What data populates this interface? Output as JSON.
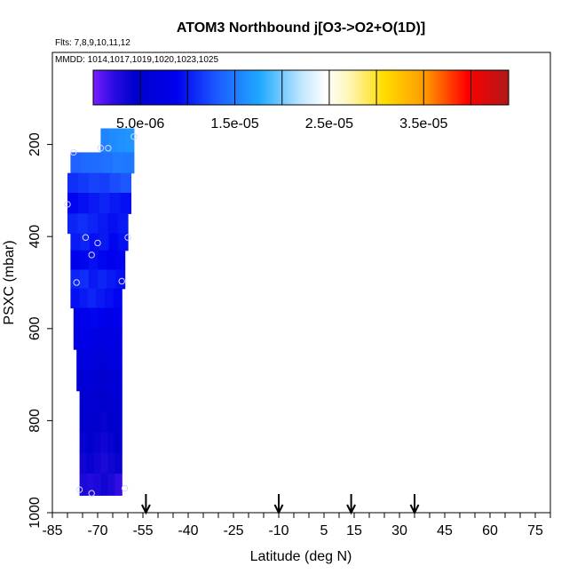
{
  "chart_data": {
    "type": "heatmap",
    "title": "ATOM3 Northbound j[O3->O2+O(1D)]",
    "flights_label": "Flts: 7,8,9,10,11,12",
    "dates_label": "MMDD: 1014,1017,1019,1020,1023,1025",
    "xlabel": "Latitude (deg N)",
    "ylabel": "PSXC (mbar)",
    "xlim": [
      -85,
      80
    ],
    "ylim": [
      1000,
      0
    ],
    "x_ticks": [
      -85,
      -70,
      -55,
      -40,
      -25,
      -10,
      5,
      15,
      30,
      45,
      60,
      75
    ],
    "y_ticks": [
      200,
      400,
      600,
      800,
      1000
    ],
    "colorbar": {
      "min": 0,
      "max": 4.4e-05,
      "tick_values": [
        5e-06,
        1.5e-05,
        2.5e-05,
        3.5e-05
      ],
      "tick_labels": [
        "5.0e-06",
        "1.5e-05",
        "2.5e-05",
        "3.5e-05"
      ],
      "divider_values": [
        0,
        5e-06,
        1e-05,
        1.5e-05,
        2e-05,
        2.5e-05,
        3e-05,
        3.5e-05,
        4e-05,
        4.4e-05
      ]
    },
    "arrow_latitudes": [
      -54,
      -10,
      14,
      35
    ],
    "cells": [
      {
        "lat": [
          -69,
          -58
        ],
        "p": [
          165,
          217
        ],
        "v": [
          1.55e-05,
          1.6e-05,
          1.62e-05,
          1.65e-05
        ]
      },
      {
        "lat": [
          -79,
          -58
        ],
        "p": [
          217,
          262
        ],
        "v": [
          1.35e-05,
          1.4e-05,
          1.42e-05,
          1.45e-05,
          1.5e-05,
          1.48e-05
        ]
      },
      {
        "lat": [
          -80,
          -59
        ],
        "p": [
          262,
          305
        ],
        "v": [
          1.1e-05,
          1.15e-05,
          1.2e-05,
          1.18e-05,
          1.25e-05,
          1.3e-05
        ]
      },
      {
        "lat": [
          -80,
          -59
        ],
        "p": [
          305,
          350
        ],
        "v": [
          9e-06,
          9.5e-06,
          1e-05,
          1.05e-05,
          1e-05,
          9.5e-06
        ]
      },
      {
        "lat": [
          -80,
          -60
        ],
        "p": [
          350,
          393
        ],
        "v": [
          1.05e-05,
          1.1e-05,
          1.05e-05,
          1e-05,
          9.5e-06,
          1e-05
        ]
      },
      {
        "lat": [
          -79,
          -60
        ],
        "p": [
          393,
          430
        ],
        "v": [
          1e-05,
          1.05e-05,
          9.5e-06,
          1e-05,
          9e-06,
          9.5e-06
        ]
      },
      {
        "lat": [
          -79,
          -61
        ],
        "p": [
          430,
          472
        ],
        "v": [
          8.5e-06,
          9e-06,
          9.5e-06,
          9e-06,
          8.5e-06,
          9e-06
        ]
      },
      {
        "lat": [
          -79,
          -61
        ],
        "p": [
          472,
          513
        ],
        "v": [
          1.05e-05,
          1.1e-05,
          1e-05,
          1.05e-05,
          1e-05,
          9.5e-06
        ]
      },
      {
        "lat": [
          -79,
          -62
        ],
        "p": [
          513,
          555
        ],
        "v": [
          9.5e-06,
          1e-05,
          1.05e-05,
          1e-05,
          9.5e-06,
          9e-06
        ]
      },
      {
        "lat": [
          -78,
          -62
        ],
        "p": [
          555,
          600
        ],
        "v": [
          8e-06,
          8.5e-06,
          9e-06,
          8.5e-06,
          8e-06,
          8.5e-06
        ]
      },
      {
        "lat": [
          -78,
          -62
        ],
        "p": [
          600,
          645
        ],
        "v": [
          7.5e-06,
          8e-06,
          7.5e-06,
          7e-06,
          7.5e-06,
          7e-06
        ]
      },
      {
        "lat": [
          -77,
          -62
        ],
        "p": [
          645,
          688
        ],
        "v": [
          6.5e-06,
          7e-06,
          6.5e-06,
          6e-06,
          6.5e-06,
          7e-06
        ]
      },
      {
        "lat": [
          -77,
          -62
        ],
        "p": [
          688,
          735
        ],
        "v": [
          5.5e-06,
          6e-06,
          5.5e-06,
          5e-06,
          5.5e-06,
          6e-06
        ]
      },
      {
        "lat": [
          -76,
          -62
        ],
        "p": [
          735,
          780
        ],
        "v": [
          5e-06,
          5.5e-06,
          5e-06,
          4.5e-06,
          5e-06,
          5.5e-06
        ]
      },
      {
        "lat": [
          -76,
          -62
        ],
        "p": [
          780,
          825
        ],
        "v": [
          4.5e-06,
          5e-06,
          4.5e-06,
          4e-06,
          4.5e-06,
          5e-06
        ]
      },
      {
        "lat": [
          -76,
          -62
        ],
        "p": [
          825,
          870
        ],
        "v": [
          4e-06,
          4.5e-06,
          4e-06,
          3.5e-06,
          4e-06,
          4.5e-06
        ]
      },
      {
        "lat": [
          -76,
          -62
        ],
        "p": [
          870,
          915
        ],
        "v": [
          3.5e-06,
          4e-06,
          3.5e-06,
          3e-06,
          3.5e-06,
          4e-06
        ]
      },
      {
        "lat": [
          -76,
          -62
        ],
        "p": [
          915,
          962
        ],
        "v": [
          3e-06,
          2.5e-06,
          3e-06,
          3.5e-06,
          3e-06,
          2e-06
        ]
      }
    ],
    "points": [
      {
        "lat": -78,
        "p": 217
      },
      {
        "lat": -69,
        "p": 208
      },
      {
        "lat": -66.5,
        "p": 208
      },
      {
        "lat": -58,
        "p": 183
      },
      {
        "lat": -80,
        "p": 330
      },
      {
        "lat": -74,
        "p": 402
      },
      {
        "lat": -70,
        "p": 414
      },
      {
        "lat": -60,
        "p": 402
      },
      {
        "lat": -72,
        "p": 440
      },
      {
        "lat": -77,
        "p": 500
      },
      {
        "lat": -62,
        "p": 497
      },
      {
        "lat": -76,
        "p": 950
      },
      {
        "lat": -72,
        "p": 958
      },
      {
        "lat": -61,
        "p": 947
      }
    ]
  }
}
